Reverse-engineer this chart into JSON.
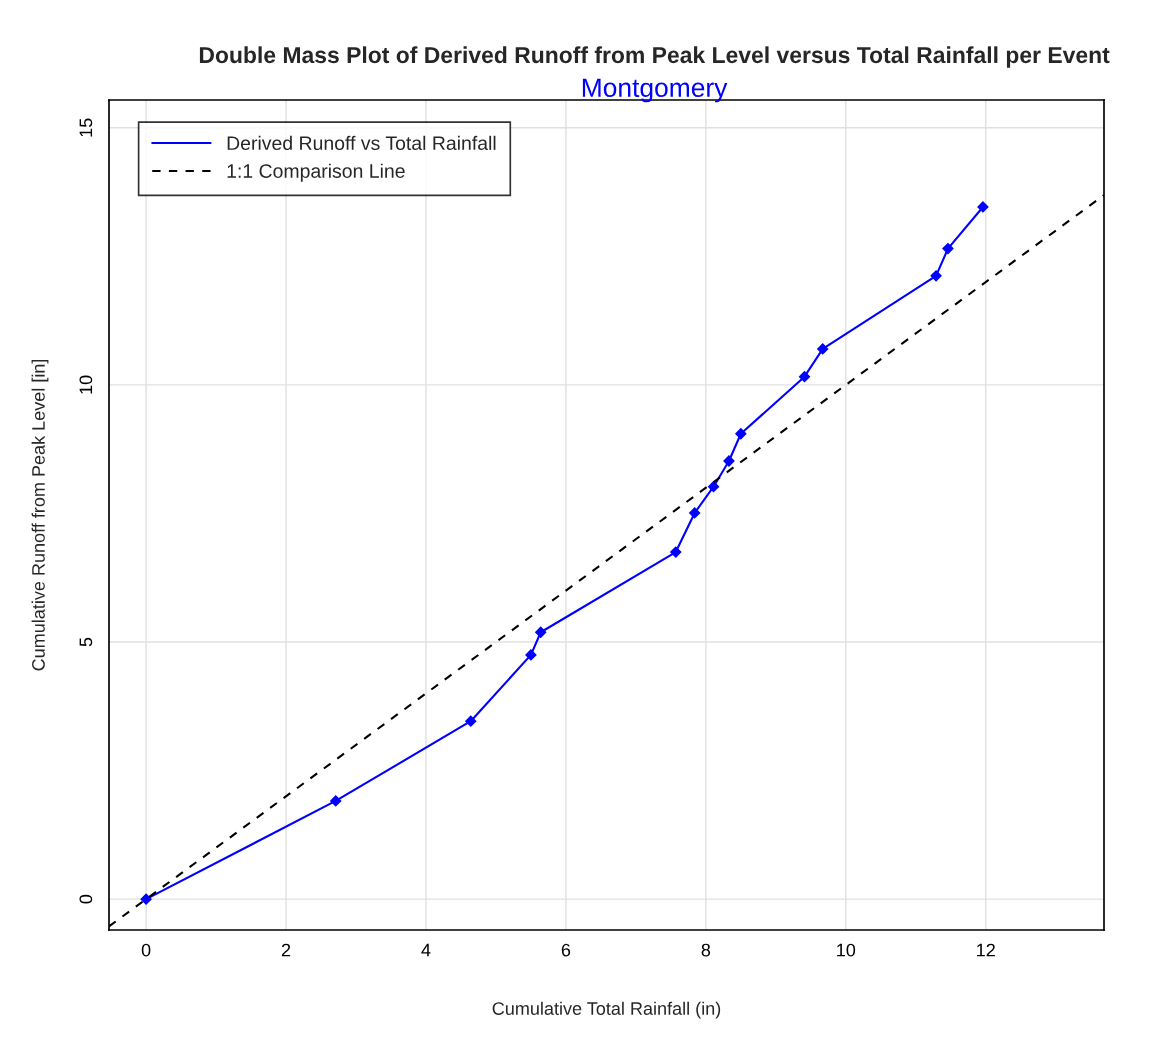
{
  "chart_data": {
    "type": "line",
    "title": "Double Mass Plot of Derived Runoff from Peak Level versus Total Rainfall per Event",
    "subtitle": "Montgomery",
    "xlabel": "Cumulative Total Rainfall (in)",
    "ylabel": "Cumulative Runoff from Peak Level [in]",
    "xlim": [
      -0.53,
      13.69
    ],
    "ylim": [
      -0.6,
      15.54
    ],
    "xticks": [
      0,
      2,
      4,
      6,
      8,
      10,
      12
    ],
    "yticks": [
      0,
      5,
      10,
      15
    ],
    "grid": true,
    "legend": "top left",
    "series": [
      {
        "name": "Derived Runoff vs Total Rainfall",
        "color": "#0000ff",
        "marker": "diamond",
        "line_style": "solid",
        "x": [
          0,
          2.71,
          4.64,
          5.5,
          5.64,
          7.57,
          7.84,
          8.11,
          8.33,
          8.5,
          9.41,
          9.67,
          11.29,
          11.46,
          11.96
        ],
        "values": [
          0,
          1.91,
          3.46,
          4.75,
          5.19,
          6.75,
          7.51,
          8.02,
          8.52,
          9.05,
          10.16,
          10.7,
          12.12,
          12.65,
          13.46
        ]
      },
      {
        "name": "1:1 Comparison Line",
        "color": "#000000",
        "marker": "none",
        "line_style": "dashed",
        "x": [
          -0.53,
          13.69
        ],
        "values": [
          -0.53,
          13.69
        ]
      }
    ]
  }
}
